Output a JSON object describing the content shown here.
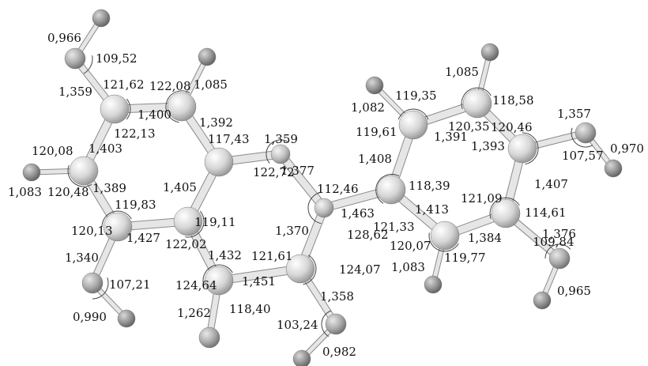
{
  "atoms": [
    {
      "id": "H1",
      "el": "H"
    },
    {
      "id": "O1",
      "el": "O"
    },
    {
      "id": "C1",
      "el": "C"
    },
    {
      "id": "C2",
      "el": "C"
    },
    {
      "id": "H2",
      "el": "H"
    },
    {
      "id": "C3",
      "el": "C"
    },
    {
      "id": "H3",
      "el": "H"
    },
    {
      "id": "C4",
      "el": "C"
    },
    {
      "id": "C5",
      "el": "C"
    },
    {
      "id": "O2",
      "el": "O"
    },
    {
      "id": "H4",
      "el": "H"
    },
    {
      "id": "C6",
      "el": "C"
    },
    {
      "id": "N1",
      "el": "N"
    },
    {
      "id": "C7",
      "el": "C"
    },
    {
      "id": "N2",
      "el": "N"
    },
    {
      "id": "O3",
      "el": "O"
    },
    {
      "id": "C8",
      "el": "C"
    },
    {
      "id": "O4",
      "el": "O"
    },
    {
      "id": "H5",
      "el": "H"
    },
    {
      "id": "C9",
      "el": "C"
    },
    {
      "id": "C10",
      "el": "C"
    },
    {
      "id": "H6",
      "el": "H"
    },
    {
      "id": "C11",
      "el": "C"
    },
    {
      "id": "H7",
      "el": "H"
    },
    {
      "id": "C12",
      "el": "C"
    },
    {
      "id": "O5",
      "el": "O"
    },
    {
      "id": "H8",
      "el": "H"
    },
    {
      "id": "C13",
      "el": "C"
    },
    {
      "id": "O6",
      "el": "O"
    },
    {
      "id": "H9",
      "el": "H"
    },
    {
      "id": "C14",
      "el": "C"
    },
    {
      "id": "H10",
      "el": "H"
    }
  ],
  "bonds": [
    [
      "H1",
      "O1"
    ],
    [
      "O1",
      "C1"
    ],
    [
      "C1",
      "C2"
    ],
    [
      "C2",
      "H2"
    ],
    [
      "C2",
      "C3"
    ],
    [
      "C3",
      "N1"
    ],
    [
      "C3",
      "C6"
    ],
    [
      "C6",
      "C5"
    ],
    [
      "C5",
      "C4"
    ],
    [
      "C4",
      "C1"
    ],
    [
      "C4",
      "H3"
    ],
    [
      "C5",
      "O2"
    ],
    [
      "O2",
      "H4"
    ],
    [
      "C6",
      "C7"
    ],
    [
      "C7",
      "O3"
    ],
    [
      "C7",
      "C8"
    ],
    [
      "C8",
      "O4"
    ],
    [
      "O4",
      "H5"
    ],
    [
      "C8",
      "N2"
    ],
    [
      "N1",
      "N2"
    ],
    [
      "N2",
      "C9"
    ],
    [
      "C9",
      "C10"
    ],
    [
      "C10",
      "H6"
    ],
    [
      "C10",
      "C11"
    ],
    [
      "C11",
      "H7"
    ],
    [
      "C11",
      "C12"
    ],
    [
      "C12",
      "O5"
    ],
    [
      "O5",
      "H8"
    ],
    [
      "C12",
      "C13"
    ],
    [
      "C13",
      "O6"
    ],
    [
      "O6",
      "H9"
    ],
    [
      "C13",
      "C14"
    ],
    [
      "C14",
      "H10"
    ],
    [
      "C14",
      "C9"
    ]
  ],
  "labels": [
    "0,966",
    "109,52",
    "1,359",
    "121,62",
    "122,08",
    "1,085",
    "1,400",
    "122,13",
    "1,392",
    "117,43",
    "1,359",
    "120,08",
    "1,403",
    "122,72",
    "1,377",
    "1,083",
    "120,48",
    "1,389",
    "1,405",
    "119,83",
    "119,11",
    "112,46",
    "120,13",
    "1,427",
    "122,02",
    "1,340",
    "107,21",
    "1,432",
    "121,61",
    "1,370",
    "128,62",
    "124,64",
    "1,451",
    "124,07",
    "1,262",
    "118,40",
    "0,990",
    "1,358",
    "103,24",
    "0,982",
    "1,085",
    "119,35",
    "1,082",
    "118,58",
    "119,61",
    "120,35",
    "1,357",
    "1,391",
    "120,46",
    "1,408",
    "1,393",
    "107,57",
    "0,970",
    "118,39",
    "121,09",
    "1,407",
    "1,463",
    "1,413",
    "121,33",
    "114,61",
    "120,07",
    "1,384",
    "1,376",
    "119,77",
    "1,083",
    "109,84",
    "0,965"
  ],
  "colors": {
    "C": "#cfcfcf",
    "N": "#bdbdbd",
    "O": "#a6a6a6",
    "H": "#8f8f8f",
    "bond": "#c9c9c9",
    "bond_edge": "#8a8a8a",
    "arc": "#444444"
  }
}
